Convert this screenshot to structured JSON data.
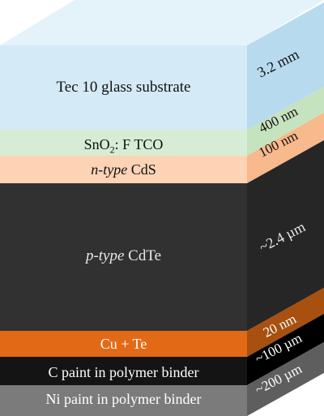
{
  "layers": [
    {
      "key": "glass",
      "label": "Tec 10 glass substrate",
      "thickness": "3.2 mm",
      "front": "#d4eaf6",
      "side": "#b8daee",
      "top": "#e4f2fa",
      "text": "#111111",
      "thk_text": "#111111"
    },
    {
      "key": "tco",
      "label_main": "SnO",
      "label_sub": "2",
      "label_rest": ": F TCO",
      "thickness": "400 nm",
      "front": "#d7ecd4",
      "side": "#c6e3c0",
      "text": "#111111",
      "thk_text": "#111111"
    },
    {
      "key": "cds",
      "label_em": "n-type",
      "label_rest": " CdS",
      "thickness": "100 nm",
      "front": "#fcd3b5",
      "side": "#f8b98c",
      "text": "#111111",
      "thk_text": "#111111"
    },
    {
      "key": "cdte",
      "label_em": "p-type",
      "label_rest": " CdTe",
      "thickness": "~2.4 µm",
      "front": "#313131",
      "side": "#262626",
      "text": "#e8e8e8",
      "thk_text": "#e8e8e8"
    },
    {
      "key": "cute",
      "label": "Cu + Te",
      "thickness": "20 nm",
      "front": "#e26a17",
      "side": "#a8500f",
      "text": "#ffffff",
      "thk_text": "#ffffff"
    },
    {
      "key": "cpaint",
      "label": "C paint in polymer binder",
      "thickness": "~100 µm",
      "front": "#141414",
      "side": "#000000",
      "text": "#ffffff",
      "thk_text": "#ffffff"
    },
    {
      "key": "nipaint",
      "label": "Ni paint in polymer binder",
      "thickness": "~200 µm",
      "front": "#7b7b7b",
      "side": "#5e5e5e",
      "text": "#ffffff",
      "thk_text": "#ffffff"
    }
  ]
}
